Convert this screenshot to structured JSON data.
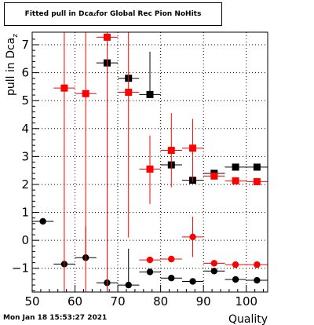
{
  "title_parts": {
    "pre": "Fitted pull in Dca",
    "sub": "z",
    "post": " for Global Rec Pion NoHits"
  },
  "datestamp": "Mon Jan 18 15:53:27 2021",
  "chart_data": {
    "type": "scatter",
    "title": "Fitted pull in Dca_z for Global Rec Pion NoHits",
    "xlabel": "Quality",
    "ylabel": "pull in Dca_z",
    "xlim": [
      50,
      105
    ],
    "ylim": [
      -1.85,
      7.45
    ],
    "grid": true,
    "x_ticks": [
      50,
      60,
      70,
      80,
      90,
      100
    ],
    "y_ticks": [
      -1,
      0,
      1,
      2,
      3,
      4,
      5,
      6,
      7
    ],
    "series": [
      {
        "marker": "circle",
        "color": "#000000",
        "points": [
          {
            "x": 52.5,
            "y": 0.68,
            "xerr": 2.5,
            "ylo": null,
            "yhi": null
          },
          {
            "x": 57.5,
            "y": -0.85,
            "xerr": 2.5,
            "ylo": null,
            "yhi": null
          },
          {
            "x": 62.5,
            "y": -0.62,
            "xerr": 2.5,
            "ylo": null,
            "yhi": 0.5
          },
          {
            "x": 67.5,
            "y": -1.52,
            "xerr": 2.5,
            "ylo": null,
            "yhi": null
          },
          {
            "x": 72.5,
            "y": -1.6,
            "xerr": 2.5,
            "ylo": null,
            "yhi": -0.3
          },
          {
            "x": 77.5,
            "y": -1.13,
            "xerr": 2.5,
            "ylo": null,
            "yhi": null
          },
          {
            "x": 82.5,
            "y": -1.35,
            "xerr": 2.5,
            "ylo": null,
            "yhi": null
          },
          {
            "x": 87.5,
            "y": -1.47,
            "xerr": 2.5,
            "ylo": null,
            "yhi": null
          },
          {
            "x": 92.5,
            "y": -1.1,
            "xerr": 2.5,
            "ylo": null,
            "yhi": null
          },
          {
            "x": 97.5,
            "y": -1.4,
            "xerr": 2.5,
            "ylo": null,
            "yhi": null
          },
          {
            "x": 102.5,
            "y": -1.43,
            "xerr": 2.5,
            "ylo": null,
            "yhi": null
          }
        ]
      },
      {
        "marker": "circle",
        "color": "#ff0000",
        "points": [
          {
            "x": 77.5,
            "y": -0.7,
            "xerr": 2.5,
            "ylo": null,
            "yhi": null
          },
          {
            "x": 82.5,
            "y": -0.67,
            "xerr": 2.5,
            "ylo": null,
            "yhi": null
          },
          {
            "x": 87.5,
            "y": 0.12,
            "xerr": 2.5,
            "ylo": -0.6,
            "yhi": 0.85
          },
          {
            "x": 92.5,
            "y": -0.82,
            "xerr": 2.5,
            "ylo": null,
            "yhi": null
          },
          {
            "x": 97.5,
            "y": -0.87,
            "xerr": 2.5,
            "ylo": null,
            "yhi": null
          },
          {
            "x": 102.5,
            "y": -0.87,
            "xerr": 2.5,
            "ylo": null,
            "yhi": null
          }
        ]
      },
      {
        "marker": "square",
        "color": "#000000",
        "points": [
          {
            "x": 67.5,
            "y": 6.35,
            "xerr": 2.5,
            "ylo": null,
            "yhi": null
          },
          {
            "x": 72.5,
            "y": 5.8,
            "xerr": 2.5,
            "ylo": null,
            "yhi": null
          },
          {
            "x": 77.5,
            "y": 5.22,
            "xerr": 2.5,
            "ylo": null,
            "yhi": 6.75
          },
          {
            "x": 82.5,
            "y": 2.7,
            "xerr": 2.5,
            "ylo": null,
            "yhi": null
          },
          {
            "x": 87.5,
            "y": 2.15,
            "xerr": 2.5,
            "ylo": null,
            "yhi": null
          },
          {
            "x": 92.5,
            "y": 2.4,
            "xerr": 2.5,
            "ylo": null,
            "yhi": null
          },
          {
            "x": 97.5,
            "y": 2.62,
            "xerr": 2.5,
            "ylo": null,
            "yhi": null
          },
          {
            "x": 102.5,
            "y": 2.62,
            "xerr": 2.5,
            "ylo": null,
            "yhi": null
          }
        ]
      },
      {
        "marker": "square",
        "color": "#ff0000",
        "points": [
          {
            "x": 57.5,
            "y": 5.45,
            "xerr": 2.5,
            "ylo": -1.85,
            "yhi": 7.45
          },
          {
            "x": 62.5,
            "y": 5.25,
            "xerr": 2.5,
            "ylo": -1.85,
            "yhi": 7.45
          },
          {
            "x": 67.5,
            "y": 7.27,
            "xerr": 2.5,
            "ylo": -1.85,
            "yhi": 7.45
          },
          {
            "x": 72.5,
            "y": 5.3,
            "xerr": 2.5,
            "ylo": 0.1,
            "yhi": 7.45
          },
          {
            "x": 77.5,
            "y": 2.55,
            "xerr": 2.5,
            "ylo": 1.3,
            "yhi": 3.75
          },
          {
            "x": 82.5,
            "y": 3.22,
            "xerr": 2.5,
            "ylo": 1.9,
            "yhi": 4.55
          },
          {
            "x": 87.5,
            "y": 3.3,
            "xerr": 2.5,
            "ylo": 2.1,
            "yhi": 4.35
          },
          {
            "x": 92.5,
            "y": 2.3,
            "xerr": 2.5,
            "ylo": null,
            "yhi": null
          },
          {
            "x": 97.5,
            "y": 2.13,
            "xerr": 2.5,
            "ylo": null,
            "yhi": null
          },
          {
            "x": 102.5,
            "y": 2.1,
            "xerr": 2.5,
            "ylo": null,
            "yhi": null
          }
        ]
      }
    ]
  }
}
